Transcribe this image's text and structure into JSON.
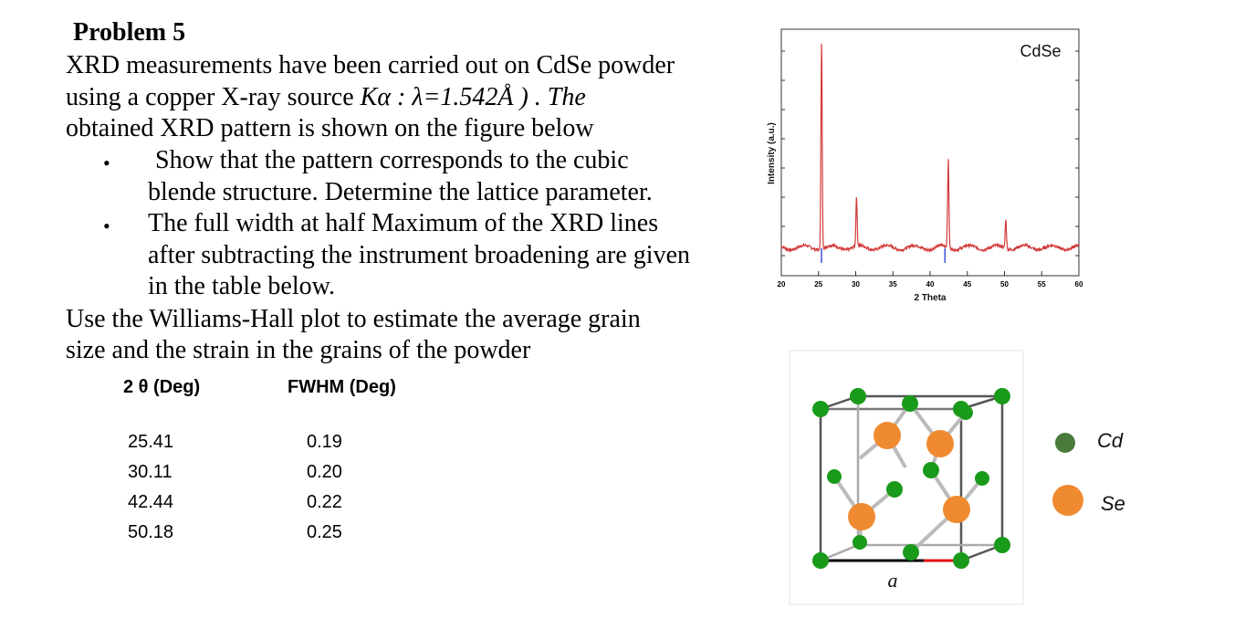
{
  "problem": {
    "title": "Problem 5",
    "lines": [
      "XRD measurements  have been carried out on CdSe powder",
      "using a copper  X-ray source",
      "obtained XRD pattern is shown on the figure below"
    ],
    "source_formula": "Kα : λ=1.542Å ) . The",
    "bullets": [
      {
        "lines": [
          "Show that the pattern corresponds to the cubic",
          "blende structure.  Determine the lattice parameter."
        ]
      },
      {
        "lines": [
          "The full width at half Maximum of the XRD lines",
          "after subtracting the instrument broadening are given",
          "in the table below."
        ]
      }
    ],
    "closing": [
      "Use the Williams-Hall  plot to estimate  the average grain",
      "size and the  strain  in the grains of the powder"
    ]
  },
  "table": {
    "headers": [
      "2 θ (Deg)",
      "FWHM (Deg)"
    ],
    "rows": [
      [
        "25.41",
        "0.19"
      ],
      [
        "30.11",
        "0.20"
      ],
      [
        "42.44",
        "0.22"
      ],
      [
        "50.18",
        "0.25"
      ]
    ]
  },
  "chart_data": {
    "type": "line",
    "title": "CdSe",
    "xlabel": "2 Theta",
    "ylabel": "Intensity (a.u.)",
    "xlim": [
      20,
      60
    ],
    "xticks": [
      "20",
      "25",
      "30",
      "35",
      "40",
      "45",
      "50",
      "55",
      "60"
    ],
    "peaks": [
      {
        "x": 25.41,
        "height": 0.92
      },
      {
        "x": 30.11,
        "height": 0.22
      },
      {
        "x": 42.44,
        "height": 0.39
      },
      {
        "x": 50.18,
        "height": 0.13
      }
    ],
    "reference_lines": [
      25.4,
      42.0
    ],
    "line_color": "#d33a3a",
    "reference_color": "#3a4fd3"
  },
  "structure": {
    "label_a": "a",
    "legend": [
      {
        "label": "Cd",
        "color": "#4a7a3c"
      },
      {
        "label": "Se",
        "color": "#f08a30"
      }
    ]
  }
}
